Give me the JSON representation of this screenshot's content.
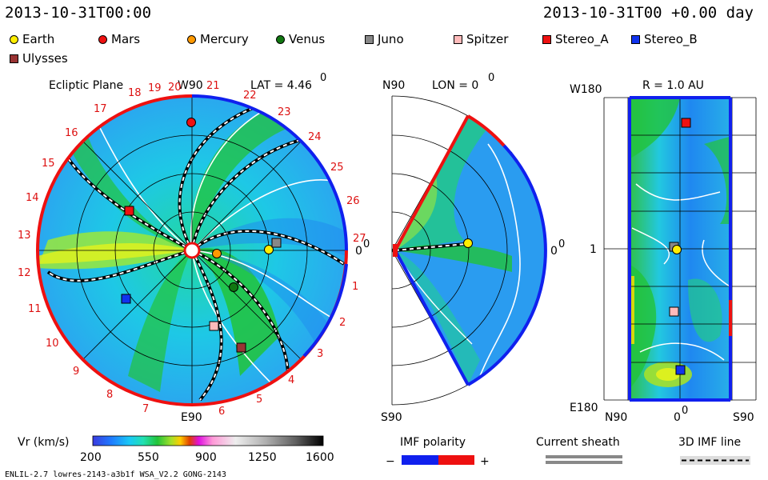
{
  "header": {
    "left_time": "2013-10-31T00:00",
    "right_time": "2013-10-31T00 +0.00 day"
  },
  "legend": [
    {
      "label": "Earth",
      "shape": "circle",
      "color": "#ffee00"
    },
    {
      "label": "Mars",
      "shape": "circle",
      "color": "#ee1111"
    },
    {
      "label": "Mercury",
      "shape": "circle",
      "color": "#ff9900"
    },
    {
      "label": "Venus",
      "shape": "circle",
      "color": "#117711"
    },
    {
      "label": "Juno",
      "shape": "square",
      "color": "#888888"
    },
    {
      "label": "Spitzer",
      "shape": "square",
      "color": "#ffbbbb"
    },
    {
      "label": "Stereo_A",
      "shape": "square",
      "color": "#ee1111"
    },
    {
      "label": "Stereo_B",
      "shape": "square",
      "color": "#1133ee"
    },
    {
      "label": "Ulysses",
      "shape": "square",
      "color": "#993333"
    }
  ],
  "ecliptic": {
    "title": "Ecliptic Plane",
    "top_label": "W90",
    "bottom_label": "E90",
    "lat_label": "LAT = 4.46",
    "deg_mark": "0",
    "zero_label": "0",
    "zero_sup": "0",
    "rotation_numbers": [
      "20",
      "21",
      "22",
      "23",
      "24",
      "25",
      "26",
      "27",
      "1",
      "2",
      "3",
      "4",
      "5",
      "6",
      "7",
      "8",
      "9",
      "10",
      "11",
      "12",
      "13",
      "14",
      "15",
      "16",
      "17",
      "18",
      "19"
    ]
  },
  "meridional": {
    "top_label": "N90",
    "lon_label": "LON = 0",
    "deg_mark": "0",
    "zero_label": "0",
    "zero_sup": "0",
    "bottom_label": "S90"
  },
  "radial": {
    "r_label": "R = 1.0 AU",
    "top_left": "W180",
    "mid_left": "1",
    "bottom_left": "E180",
    "x_left": "N90",
    "x_mid": "0",
    "x_mid_sup": "0",
    "x_right": "S90"
  },
  "colorbar": {
    "title": "Vr (km/s)",
    "ticks": [
      "200",
      "550",
      "900",
      "1250",
      "1600"
    ],
    "colors": [
      "#3a3adf",
      "#1f7bff",
      "#19c9f5",
      "#22e0b0",
      "#22c33a",
      "#a4e02a",
      "#ffcc00",
      "#e04000",
      "#e010e0",
      "#ff9ad8",
      "#e8e8e8",
      "#b0b0b0",
      "#707070",
      "#303030",
      "#000000"
    ]
  },
  "imf": {
    "title": "IMF polarity",
    "minus": "−",
    "plus": "+",
    "neg_color": "#1020ee",
    "pos_color": "#ee1010"
  },
  "sheath": {
    "title": "Current sheath"
  },
  "imf3d": {
    "title": "3D IMF line"
  },
  "footer": {
    "left": "ENLIL-2.7 lowres-2143-a3b1f WSA_V2.2 GONG-2143"
  }
}
